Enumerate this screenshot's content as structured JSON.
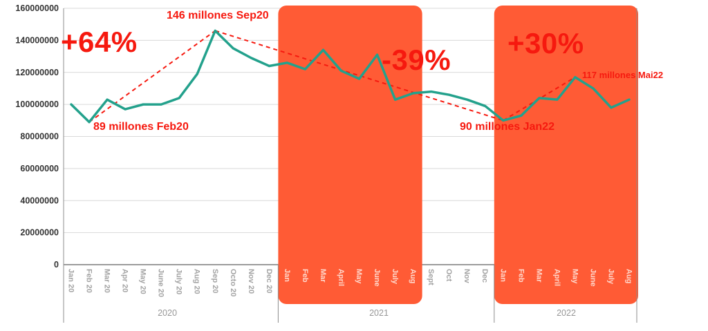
{
  "chart_data": {
    "type": "line",
    "title": "",
    "ylim": [
      0,
      160000000
    ],
    "y_ticks": [
      0,
      20000000,
      40000000,
      60000000,
      80000000,
      100000000,
      120000000,
      140000000,
      160000000
    ],
    "months": [
      {
        "label": "Jan 20",
        "year": "2020",
        "value": 100000000
      },
      {
        "label": "Feb 20",
        "year": "2020",
        "value": 89000000
      },
      {
        "label": "Mar 20",
        "year": "2020",
        "value": 103000000
      },
      {
        "label": "Apr 20",
        "year": "2020",
        "value": 97000000
      },
      {
        "label": "May 20",
        "year": "2020",
        "value": 100000000
      },
      {
        "label": "June 20",
        "year": "2020",
        "value": 100000000
      },
      {
        "label": "July 20",
        "year": "2020",
        "value": 104000000
      },
      {
        "label": "Aug 20",
        "year": "2020",
        "value": 119000000
      },
      {
        "label": "Sep 20",
        "year": "2020",
        "value": 146000000
      },
      {
        "label": "Octo 20",
        "year": "2020",
        "value": 135000000
      },
      {
        "label": "Nov 20",
        "year": "2020",
        "value": 129000000
      },
      {
        "label": "Dec 20",
        "year": "2020",
        "value": 124000000
      },
      {
        "label": "Jan",
        "year": "2021",
        "value": 126000000
      },
      {
        "label": "Feb",
        "year": "2021",
        "value": 122000000
      },
      {
        "label": "Mar",
        "year": "2021",
        "value": 134000000
      },
      {
        "label": "April",
        "year": "2021",
        "value": 121000000
      },
      {
        "label": "May",
        "year": "2021",
        "value": 116000000
      },
      {
        "label": "June",
        "year": "2021",
        "value": 131000000
      },
      {
        "label": "July",
        "year": "2021",
        "value": 103000000
      },
      {
        "label": "Aug",
        "year": "2021",
        "value": 107000000
      },
      {
        "label": "Sept",
        "year": "2021",
        "value": 108000000
      },
      {
        "label": "Oct",
        "year": "2021",
        "value": 106000000
      },
      {
        "label": "Nov",
        "year": "2021",
        "value": 103000000
      },
      {
        "label": "Dec",
        "year": "2021",
        "value": 99000000
      },
      {
        "label": "Jan",
        "year": "2022",
        "value": 90000000
      },
      {
        "label": "Feb",
        "year": "2022",
        "value": 93000000
      },
      {
        "label": "Mar",
        "year": "2022",
        "value": 104000000
      },
      {
        "label": "April",
        "year": "2022",
        "value": 103000000
      },
      {
        "label": "May",
        "year": "2022",
        "value": 117000000
      },
      {
        "label": "June",
        "year": "2022",
        "value": 110000000
      },
      {
        "label": "July",
        "year": "2022",
        "value": 98000000
      },
      {
        "label": "Aug",
        "year": "2022",
        "value": 103000000
      }
    ],
    "year_groups": [
      {
        "label": "2020",
        "from": 0,
        "to": 11
      },
      {
        "label": "2021",
        "from": 12,
        "to": 23
      },
      {
        "label": "2022",
        "from": 24,
        "to": 31
      }
    ],
    "highlight_bands": [
      {
        "name": "jan-aug-2021",
        "from": 12,
        "to": 19
      },
      {
        "name": "jan-aug-2022",
        "from": 24,
        "to": 31
      }
    ],
    "trend_lines": [
      {
        "from_month": 1,
        "from_value": 89000000,
        "to_month": 8,
        "to_value": 146000000
      },
      {
        "from_month": 8,
        "from_value": 146000000,
        "to_month": 24,
        "to_value": 90000000
      },
      {
        "from_month": 24,
        "from_value": 90000000,
        "to_month": 28,
        "to_value": 117000000
      }
    ],
    "annotations": {
      "growth_2020": {
        "text": "+64%"
      },
      "peak_sep20": {
        "text": "146 millones Sep20"
      },
      "low_feb20": {
        "text": "89 millones Feb20"
      },
      "drop_2021": {
        "text": "-39%"
      },
      "low_jan22": {
        "text": "90 millones Jan22"
      },
      "growth_2022": {
        "text": "+30%"
      },
      "peak_mai22": {
        "text": "117 millones Mai22"
      }
    },
    "colors": {
      "line": "#23a18c",
      "band": "#ff5b35",
      "annotation": "#f6190f",
      "grid": "#d9d9d9",
      "axis": "#8c8c8c",
      "zero_axis": "#7a7a7a",
      "month_label": "#a3a3a3",
      "month_label_on_band": "#ffd8cc",
      "year_label": "#969696"
    },
    "legend": "none",
    "grid": "horizontal"
  }
}
